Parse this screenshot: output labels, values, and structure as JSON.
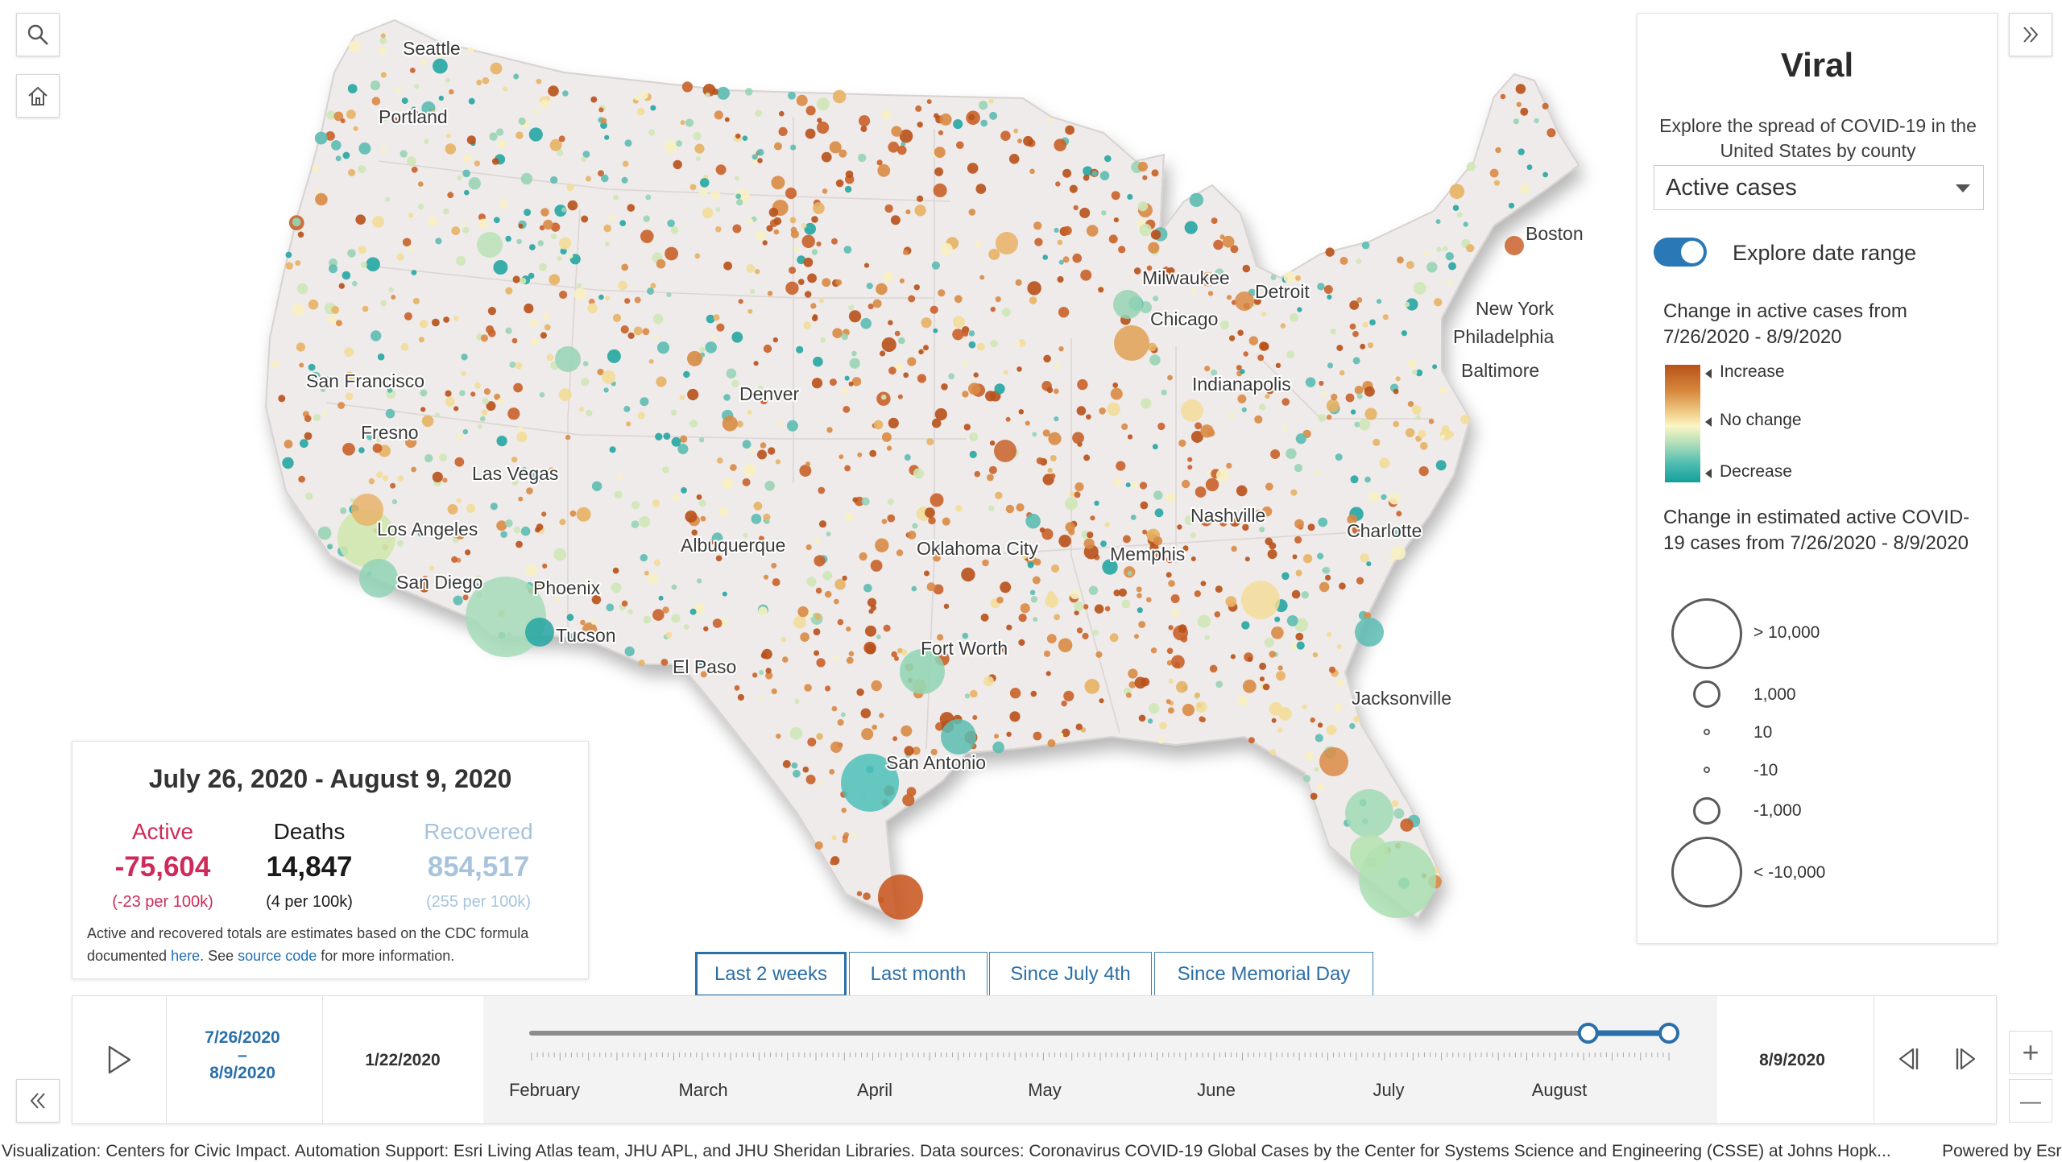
{
  "map": {
    "cities": [
      {
        "name": "Seattle"
      },
      {
        "name": "Portland"
      },
      {
        "name": "San Francisco"
      },
      {
        "name": "Fresno"
      },
      {
        "name": "Las Vegas"
      },
      {
        "name": "Los Angeles"
      },
      {
        "name": "San Diego"
      },
      {
        "name": "Phoenix"
      },
      {
        "name": "Tucson"
      },
      {
        "name": "El Paso"
      },
      {
        "name": "Albuquerque"
      },
      {
        "name": "Denver"
      },
      {
        "name": "Oklahoma City"
      },
      {
        "name": "Fort Worth"
      },
      {
        "name": "San Antonio"
      },
      {
        "name": "Memphis"
      },
      {
        "name": "Nashville"
      },
      {
        "name": "Chicago"
      },
      {
        "name": "Milwaukee"
      },
      {
        "name": "Detroit"
      },
      {
        "name": "Indianapolis"
      },
      {
        "name": "Charlotte"
      },
      {
        "name": "Jacksonville"
      },
      {
        "name": "Baltimore"
      },
      {
        "name": "Philadelphia"
      },
      {
        "name": "New York"
      },
      {
        "name": "Boston"
      }
    ],
    "colors": {
      "increase": "#b85218",
      "no_change": "#fbf6c4",
      "decrease": "#139e9c",
      "land": "#efebea"
    }
  },
  "tools": {
    "search_icon": "search-icon",
    "home_icon": "home-icon",
    "expand_icon": "double-chevron-right-icon",
    "collapse_icon": "double-chevron-left-icon"
  },
  "panel": {
    "title": "Viral",
    "subtitle": "Explore the spread of COVID-19 in the United States by county",
    "select_value": "Active cases",
    "toggle_label": "Explore date range",
    "toggle_on": true,
    "color_legend_title": "Change in active cases from 7/26/2020 - 8/9/2020",
    "color_legend": {
      "increase": "Increase",
      "no_change": "No change",
      "decrease": "Decrease"
    },
    "size_legend_title": "Change in estimated active COVID-19 cases from 7/26/2020 - 8/9/2020",
    "size_legend": [
      "> 10,000",
      "1,000",
      "10",
      "-10",
      "-1,000",
      "< -10,000"
    ]
  },
  "stats": {
    "date_range": "July 26, 2020 - August 9, 2020",
    "active": {
      "label": "Active",
      "value": "-75,604",
      "per": "(-23 per 100k)",
      "color": "#cf2b5a"
    },
    "deaths": {
      "label": "Deaths",
      "value": "14,847",
      "per": "(4 per 100k)",
      "color": "#1a1a1a"
    },
    "recovered": {
      "label": "Recovered",
      "value": "854,517",
      "per": "(255 per 100k)",
      "color": "#a7c4dc"
    },
    "note_1": "Active and recovered totals are estimates based on the CDC formula",
    "note_2": "documented",
    "note_link_here": "here",
    "note_3": ". See",
    "note_link_source": "source code",
    "note_4": "for more information."
  },
  "range_buttons": [
    {
      "label": "Last 2 weeks",
      "active": true
    },
    {
      "label": "Last month",
      "active": false
    },
    {
      "label": "Since July 4th",
      "active": false
    },
    {
      "label": "Since Memorial Day",
      "active": false
    }
  ],
  "timeslider": {
    "selected_start": "7/26/2020",
    "dash": "–",
    "selected_end": "8/9/2020",
    "min_date": "1/22/2020",
    "max_date": "8/9/2020",
    "months": [
      "February",
      "March",
      "April",
      "May",
      "June",
      "July",
      "August"
    ],
    "range_start_fraction": 0.929,
    "range_end_fraction": 1.0,
    "accent": "#2a6fa9"
  },
  "zoom": {
    "in": "+",
    "out": "—"
  },
  "attribution": {
    "text": "Visualization: Centers for Civic Impact. Automation Support: Esri Living Atlas team, JHU APL, and JHU Sheridan Libraries. Data sources: Coronavirus COVID-19 Global Cases by the Center for Systems Science and Engineering (CSSE) at Johns Hopk...",
    "powered": "Powered by Esri"
  }
}
